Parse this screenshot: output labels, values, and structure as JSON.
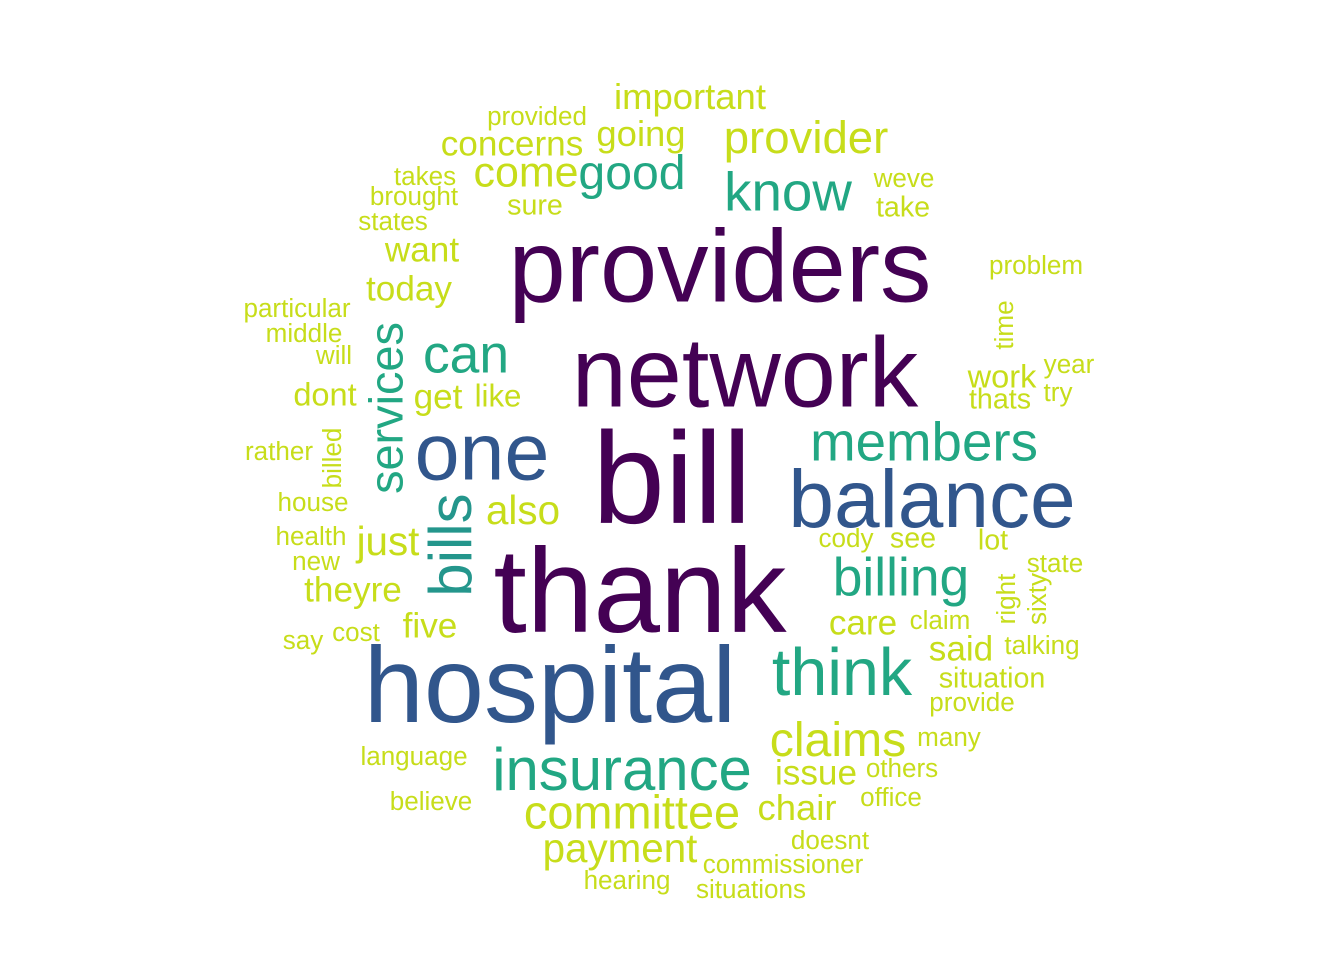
{
  "chart_data": {
    "type": "wordcloud",
    "words": [
      {
        "text": "bill",
        "weight": 100,
        "color": "#440154"
      },
      {
        "text": "network",
        "weight": 76,
        "color": "#440154"
      },
      {
        "text": "thank",
        "weight": 92,
        "color": "#440154"
      },
      {
        "text": "providers",
        "weight": 79,
        "color": "#440154"
      },
      {
        "text": "hospital",
        "weight": 83,
        "color": "#31568C"
      },
      {
        "text": "one",
        "weight": 62,
        "color": "#31568C"
      },
      {
        "text": "balance",
        "weight": 63,
        "color": "#31568C"
      },
      {
        "text": "bills",
        "weight": 46,
        "color": "#24968C"
      },
      {
        "text": "think",
        "weight": 51,
        "color": "#22A783"
      },
      {
        "text": "insurance",
        "weight": 46,
        "color": "#22A783"
      },
      {
        "text": "members",
        "weight": 42,
        "color": "#22A783"
      },
      {
        "text": "know",
        "weight": 42,
        "color": "#22A783"
      },
      {
        "text": "can",
        "weight": 41,
        "color": "#22A783"
      },
      {
        "text": "billing",
        "weight": 41,
        "color": "#22A783"
      },
      {
        "text": "services",
        "weight": 36,
        "color": "#22A783"
      },
      {
        "text": "good",
        "weight": 37,
        "color": "#22A783"
      },
      {
        "text": "claims",
        "weight": 37,
        "color": "#C7DD1A"
      },
      {
        "text": "committee",
        "weight": 36,
        "color": "#C7DD1A"
      },
      {
        "text": "provider",
        "weight": 35,
        "color": "#C7DD1A"
      },
      {
        "text": "come",
        "weight": 33,
        "color": "#C7DD1A"
      },
      {
        "text": "payment",
        "weight": 31,
        "color": "#C7DD1A"
      },
      {
        "text": "also",
        "weight": 31,
        "color": "#C7DD1A"
      },
      {
        "text": "just",
        "weight": 31,
        "color": "#C7DD1A"
      },
      {
        "text": "chair",
        "weight": 28,
        "color": "#C7DD1A"
      },
      {
        "text": "important",
        "weight": 28,
        "color": "#C7DD1A"
      },
      {
        "text": "going",
        "weight": 28,
        "color": "#C7DD1A"
      },
      {
        "text": "concerns",
        "weight": 27,
        "color": "#C7DD1A"
      },
      {
        "text": "issue",
        "weight": 27,
        "color": "#C7DD1A"
      },
      {
        "text": "said",
        "weight": 27,
        "color": "#C7DD1A"
      },
      {
        "text": "care",
        "weight": 27,
        "color": "#C7DD1A"
      },
      {
        "text": "want",
        "weight": 27,
        "color": "#C7DD1A"
      },
      {
        "text": "today",
        "weight": 27,
        "color": "#C7DD1A"
      },
      {
        "text": "theyre",
        "weight": 27,
        "color": "#C7DD1A"
      },
      {
        "text": "five",
        "weight": 27,
        "color": "#C7DD1A"
      },
      {
        "text": "get",
        "weight": 27,
        "color": "#C7DD1A"
      },
      {
        "text": "dont",
        "weight": 25,
        "color": "#C7DD1A"
      },
      {
        "text": "work",
        "weight": 25,
        "color": "#C7DD1A"
      },
      {
        "text": "like",
        "weight": 24,
        "color": "#C7DD1A"
      },
      {
        "text": "sure",
        "weight": 22,
        "color": "#C7DD1A"
      },
      {
        "text": "lot",
        "weight": 22,
        "color": "#C7DD1A"
      },
      {
        "text": "take",
        "weight": 22,
        "color": "#C7DD1A"
      },
      {
        "text": "situation",
        "weight": 22,
        "color": "#C7DD1A"
      },
      {
        "text": "thats",
        "weight": 22,
        "color": "#C7DD1A"
      },
      {
        "text": "see",
        "weight": 22,
        "color": "#C7DD1A"
      },
      {
        "text": "provided",
        "weight": 20,
        "color": "#C7DD1A"
      },
      {
        "text": "takes",
        "weight": 20,
        "color": "#C7DD1A"
      },
      {
        "text": "brought",
        "weight": 20,
        "color": "#C7DD1A"
      },
      {
        "text": "states",
        "weight": 20,
        "color": "#C7DD1A"
      },
      {
        "text": "weve",
        "weight": 20,
        "color": "#C7DD1A"
      },
      {
        "text": "problem",
        "weight": 20,
        "color": "#C7DD1A"
      },
      {
        "text": "particular",
        "weight": 20,
        "color": "#C7DD1A"
      },
      {
        "text": "middle",
        "weight": 20,
        "color": "#C7DD1A"
      },
      {
        "text": "will",
        "weight": 20,
        "color": "#C7DD1A"
      },
      {
        "text": "time",
        "weight": 20,
        "color": "#C7DD1A"
      },
      {
        "text": "year",
        "weight": 20,
        "color": "#C7DD1A"
      },
      {
        "text": "try",
        "weight": 20,
        "color": "#C7DD1A"
      },
      {
        "text": "rather",
        "weight": 20,
        "color": "#C7DD1A"
      },
      {
        "text": "billed",
        "weight": 20,
        "color": "#C7DD1A"
      },
      {
        "text": "house",
        "weight": 20,
        "color": "#C7DD1A"
      },
      {
        "text": "health",
        "weight": 20,
        "color": "#C7DD1A"
      },
      {
        "text": "new",
        "weight": 20,
        "color": "#C7DD1A"
      },
      {
        "text": "cody",
        "weight": 20,
        "color": "#C7DD1A"
      },
      {
        "text": "state",
        "weight": 20,
        "color": "#C7DD1A"
      },
      {
        "text": "right",
        "weight": 20,
        "color": "#C7DD1A"
      },
      {
        "text": "sixty",
        "weight": 20,
        "color": "#C7DD1A"
      },
      {
        "text": "claim",
        "weight": 20,
        "color": "#C7DD1A"
      },
      {
        "text": "say",
        "weight": 20,
        "color": "#C7DD1A"
      },
      {
        "text": "cost",
        "weight": 20,
        "color": "#C7DD1A"
      },
      {
        "text": "talking",
        "weight": 20,
        "color": "#C7DD1A"
      },
      {
        "text": "provide",
        "weight": 20,
        "color": "#C7DD1A"
      },
      {
        "text": "language",
        "weight": 20,
        "color": "#C7DD1A"
      },
      {
        "text": "many",
        "weight": 20,
        "color": "#C7DD1A"
      },
      {
        "text": "others",
        "weight": 20,
        "color": "#C7DD1A"
      },
      {
        "text": "believe",
        "weight": 20,
        "color": "#C7DD1A"
      },
      {
        "text": "office",
        "weight": 20,
        "color": "#C7DD1A"
      },
      {
        "text": "doesnt",
        "weight": 20,
        "color": "#C7DD1A"
      },
      {
        "text": "commissioner",
        "weight": 20,
        "color": "#C7DD1A"
      },
      {
        "text": "hearing",
        "weight": 20,
        "color": "#C7DD1A"
      },
      {
        "text": "situations",
        "weight": 20,
        "color": "#C7DD1A"
      }
    ]
  }
}
